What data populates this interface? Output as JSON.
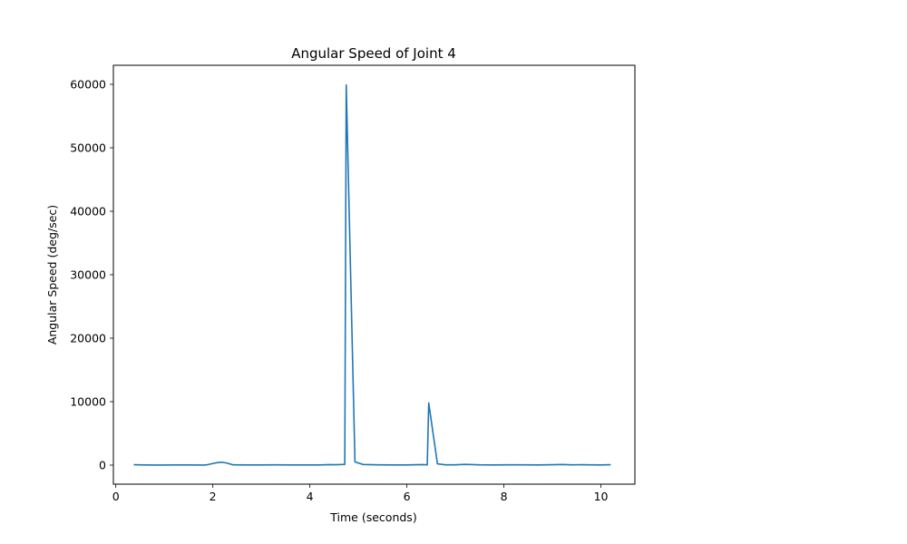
{
  "chart_data": {
    "type": "line",
    "title": "Angular Speed of Joint 4",
    "xlabel": "Time (seconds)",
    "ylabel": "Angular Speed (deg/sec)",
    "xlim": [
      -0.05,
      10.7
    ],
    "ylim": [
      -3000,
      63000
    ],
    "xticks": [
      0,
      2,
      4,
      6,
      8,
      10
    ],
    "yticks": [
      0,
      10000,
      20000,
      30000,
      40000,
      50000,
      60000
    ],
    "grid": false,
    "series": [
      {
        "color": "#1f77b4",
        "x": [
          0.37,
          0.6,
          0.9,
          1.2,
          1.5,
          1.8,
          1.88,
          2.0,
          2.1,
          2.2,
          2.3,
          2.42,
          2.7,
          3.0,
          3.3,
          3.6,
          3.9,
          4.2,
          4.4,
          4.5,
          4.6,
          4.72,
          4.75,
          4.93,
          5.1,
          5.4,
          5.7,
          6.0,
          6.2,
          6.32,
          6.42,
          6.45,
          6.63,
          6.8,
          7.0,
          7.2,
          7.5,
          7.8,
          8.1,
          8.4,
          8.7,
          9.0,
          9.2,
          9.4,
          9.6,
          9.8,
          10.0,
          10.2
        ],
        "values": [
          60,
          20,
          10,
          30,
          20,
          10,
          50,
          250,
          400,
          450,
          300,
          40,
          20,
          20,
          40,
          30,
          20,
          30,
          80,
          60,
          80,
          120,
          59900,
          500,
          100,
          40,
          20,
          30,
          60,
          80,
          40,
          9800,
          200,
          50,
          50,
          120,
          40,
          30,
          50,
          40,
          30,
          60,
          100,
          50,
          60,
          40,
          30,
          60
        ]
      }
    ]
  }
}
